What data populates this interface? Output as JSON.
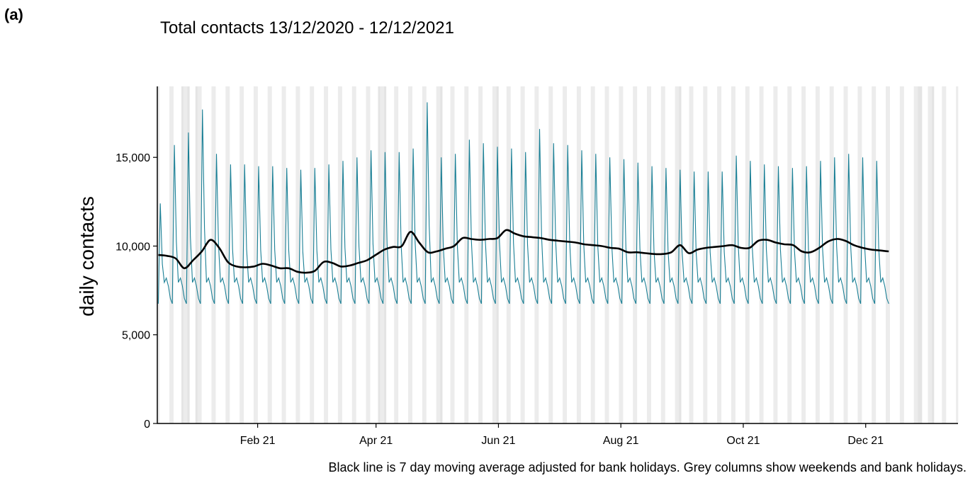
{
  "panel_label": "(a)",
  "chart_data": {
    "type": "line",
    "title": "Total contacts 13/12/2020 - 12/12/2021",
    "ylabel": "daily contacts",
    "xlabel": "",
    "caption": "Black line is 7 day moving average adjusted for bank holidays. Grey columns show weekends and bank holidays.",
    "start_date": "2020-12-13",
    "end_date": "2021-12-12",
    "xlim": [
      "2020-12-13",
      "2022-01-16"
    ],
    "ylim": [
      0,
      19000
    ],
    "y_ticks": [
      {
        "value": 0,
        "label": "0"
      },
      {
        "value": 5000,
        "label": "5,000"
      },
      {
        "value": 10000,
        "label": "10,000"
      },
      {
        "value": 15000,
        "label": "15,000"
      }
    ],
    "x_ticks": [
      {
        "date": "2021-02-01",
        "label": "Feb 21"
      },
      {
        "date": "2021-04-01",
        "label": "Apr 21"
      },
      {
        "date": "2021-06-01",
        "label": "Jun 21"
      },
      {
        "date": "2021-08-01",
        "label": "Aug 21"
      },
      {
        "date": "2021-10-01",
        "label": "Oct 21"
      },
      {
        "date": "2021-12-01",
        "label": "Dec 21"
      }
    ],
    "grid": false,
    "shaded_periods": "weekends and bank holidays",
    "bank_holidays": [
      "2020-12-25",
      "2020-12-28",
      "2021-01-01",
      "2021-04-02",
      "2021-04-05",
      "2021-05-03",
      "2021-05-31",
      "2021-08-30",
      "2021-12-27",
      "2021-12-28",
      "2022-01-03"
    ],
    "series": [
      {
        "color": "#1a7f95",
        "weekly_peaks": [
          12400,
          15700,
          16400,
          17700,
          15200,
          14600,
          14600,
          14500,
          14500,
          14400,
          14300,
          14400,
          14600,
          14800,
          15000,
          15400,
          15300,
          15300,
          15500,
          18100,
          15000,
          15200,
          16000,
          15800,
          15600,
          15500,
          15300,
          16600,
          15800,
          15700,
          15400,
          15200,
          15000,
          14900,
          14700,
          14500,
          14400,
          14300,
          14200,
          14200,
          14200,
          15100,
          14800,
          14600,
          14500,
          14400,
          14500,
          14800,
          15000,
          15200,
          15000,
          14800,
          14400,
          14300
        ],
        "weekday_level": 6900,
        "trough": 6400
      },
      {
        "color": "#000000",
        "values": [
          9500,
          9450,
          9300,
          8750,
          9200,
          9700,
          10350,
          9900,
          9100,
          8850,
          8800,
          8850,
          9000,
          8900,
          8750,
          8750,
          8550,
          8500,
          8600,
          9100,
          9050,
          8850,
          8900,
          9050,
          9200,
          9500,
          9800,
          9950,
          10000,
          10800,
          10200,
          9650,
          9700,
          9850,
          10000,
          10450,
          10400,
          10350,
          10400,
          10450,
          10900,
          10700,
          10550,
          10500,
          10450,
          10350,
          10300,
          10250,
          10200,
          10100,
          10050,
          10000,
          9900,
          9850,
          9650,
          9650,
          9600,
          9550,
          9550,
          9650,
          10050,
          9600,
          9800,
          9900,
          9950,
          10000,
          10050,
          9900,
          9900,
          10300,
          10350,
          10200,
          10100,
          10050,
          9700,
          9650,
          9900,
          10250,
          10400,
          10300,
          10050,
          9900,
          9800,
          9750,
          9700
        ]
      }
    ]
  }
}
